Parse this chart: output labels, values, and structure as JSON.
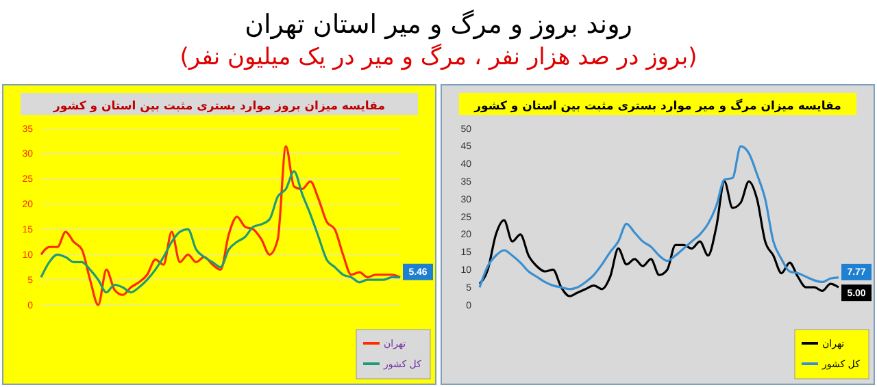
{
  "chart_data": [
    {
      "type": "line",
      "title": "مقایسه میزان بروز موارد بستری مثبت بین استان و کشور",
      "annotations": [
        "روند بروز و مرگ و میر استان تهران",
        "(بروز در صد هزار نفر ، مرگ و میر در یک میلیون نفر)"
      ],
      "categories": [
        null,
        null,
        null,
        null,
        null,
        null,
        null,
        null,
        null,
        null,
        null,
        null,
        null,
        null,
        null,
        null,
        null,
        null,
        null,
        null,
        null,
        null,
        null,
        null,
        null,
        null,
        null,
        null,
        null,
        null,
        null,
        null,
        null,
        null,
        null,
        null,
        null,
        null,
        null,
        null,
        null,
        null,
        null,
        null,
        null
      ],
      "ylim": [
        0,
        35
      ],
      "yticks": [
        0,
        5,
        10,
        15,
        20,
        25,
        30,
        35
      ],
      "grid": "y",
      "legend": "bottom right",
      "series": [
        {
          "name": "تهران",
          "color": "#ff2a00",
          "values": [
            10,
            11.5,
            11.5,
            14.5,
            12.5,
            11,
            5,
            0,
            7,
            3,
            2,
            3.5,
            4.5,
            6,
            9,
            8,
            14.5,
            8.5,
            10,
            8.5,
            9.5,
            8,
            7,
            14,
            17.5,
            15.5,
            15,
            13,
            10,
            13,
            31.5,
            23.5,
            23,
            24.5,
            21,
            16.5,
            15,
            10,
            6,
            6.5,
            5.5,
            6,
            6,
            6,
            5.5
          ]
        },
        {
          "name": "کل کشور",
          "color": "#1f9a78",
          "values": [
            5.5,
            8.5,
            10,
            9.5,
            8.5,
            8.5,
            7,
            5,
            2.5,
            4,
            3.5,
            2.5,
            3.5,
            5,
            7,
            9.5,
            12.5,
            14.5,
            15,
            11,
            9.5,
            8.5,
            7.5,
            11,
            12.5,
            13.5,
            15.5,
            16,
            17,
            21.5,
            23,
            26.5,
            22,
            18,
            13.5,
            9,
            7.5,
            6,
            5.5,
            4.5,
            5,
            5,
            5,
            5.5,
            5.46
          ],
          "value_labels": [
            null,
            null,
            null,
            null,
            null,
            null,
            null,
            null,
            null,
            null,
            null,
            null,
            null,
            null,
            null,
            null,
            null,
            null,
            null,
            null,
            null,
            null,
            null,
            null,
            null,
            null,
            null,
            null,
            null,
            null,
            null,
            null,
            null,
            null,
            null,
            null,
            null,
            null,
            null,
            null,
            null,
            null,
            null,
            null,
            "5.46"
          ]
        }
      ]
    },
    {
      "type": "line",
      "title": "مقایسه میزان مرگ و میر موارد بستری مثبت بین استان و کشور",
      "categories": [
        null,
        null,
        null,
        null,
        null,
        null,
        null,
        null,
        null,
        null,
        null,
        null,
        null,
        null,
        null,
        null,
        null,
        null,
        null,
        null,
        null,
        null,
        null,
        null,
        null,
        null,
        null,
        null,
        null,
        null,
        null,
        null,
        null,
        null,
        null,
        null,
        null,
        null,
        null,
        null,
        null,
        null,
        null,
        null,
        null
      ],
      "ylim": [
        0,
        50
      ],
      "yticks": [
        0,
        5,
        10,
        15,
        20,
        25,
        30,
        35,
        40,
        45,
        50
      ],
      "legend": "bottom right",
      "series": [
        {
          "name": "تهران",
          "color": "#000000",
          "values": [
            6,
            10,
            20,
            24,
            18,
            20,
            14,
            11,
            9.5,
            10,
            5,
            2.5,
            3.5,
            4.5,
            5.5,
            4.5,
            8,
            16,
            11.5,
            13,
            11,
            13,
            8.5,
            10,
            17,
            17,
            16,
            18,
            14,
            22,
            35,
            27.5,
            29,
            35,
            30,
            18,
            14,
            9,
            12,
            8,
            5,
            5,
            4,
            6,
            5
          ],
          "value_labels": [
            null,
            null,
            null,
            null,
            null,
            null,
            null,
            null,
            null,
            null,
            null,
            null,
            null,
            null,
            null,
            null,
            null,
            null,
            null,
            null,
            null,
            null,
            null,
            null,
            null,
            null,
            null,
            null,
            null,
            null,
            null,
            null,
            null,
            null,
            null,
            null,
            null,
            null,
            null,
            null,
            null,
            null,
            null,
            null,
            "5.00"
          ]
        },
        {
          "name": "کل کشور",
          "color": "#3a8fd0",
          "values": [
            5,
            11,
            14,
            15.5,
            14,
            12,
            9.5,
            8,
            6.5,
            5.5,
            5,
            4.5,
            5,
            6.5,
            8.5,
            11.5,
            15,
            18,
            23,
            20.5,
            18,
            16.5,
            14,
            12.5,
            14,
            16,
            18,
            20,
            23,
            28,
            35.5,
            36,
            45,
            43,
            37,
            30,
            18,
            13,
            9.5,
            9,
            8,
            7,
            6.5,
            7.5,
            7.77
          ],
          "value_labels": [
            null,
            null,
            null,
            null,
            null,
            null,
            null,
            null,
            null,
            null,
            null,
            null,
            null,
            null,
            null,
            null,
            null,
            null,
            null,
            null,
            null,
            null,
            null,
            null,
            null,
            null,
            null,
            null,
            null,
            null,
            null,
            null,
            null,
            null,
            null,
            null,
            null,
            null,
            null,
            null,
            null,
            null,
            null,
            null,
            "7.77"
          ]
        }
      ]
    }
  ]
}
